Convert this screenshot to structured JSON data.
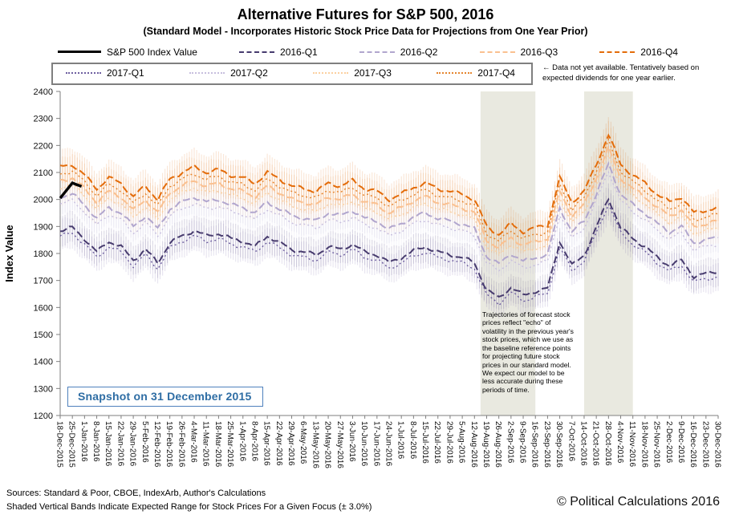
{
  "header": {
    "title": "Alternative Futures for S&P 500, 2016",
    "subtitle": "(Standard Model - Incorporates Historic Stock Price Data for Projections from One Year Prior)"
  },
  "annotations": {
    "snapshot": "Snapshot on 31 December 2015",
    "legend_note_line1": "← Data not yet available.  Tentatively based on",
    "legend_note_line2": "expected dividends for one year earlier.",
    "forecast_note": "Trajectories of forecast stock prices reflect \"echo\" of volatility in the previous year's stock prices, which we use as the baseline reference points for projecting future stock prices in our standard model.  We expect our model to be less accurate during these periods of time."
  },
  "footer": {
    "sources": "Sources: Standard & Poor, CBOE, IndexArb, Author's Calculations",
    "bands_note": "Shaded Vertical Bands Indicate Expected Range for Stock Prices For a Given Focus (± 3.0%)",
    "copyright": "© Political Calculations 2016"
  },
  "chart_data": {
    "type": "line",
    "title": "Alternative Futures for S&P 500, 2016",
    "subtitle": "(Standard Model - Incorporates Historic Stock Price Data for Projections from One Year Prior)",
    "xlabel": "",
    "ylabel": "Index Value",
    "ylim": [
      1200,
      2400
    ],
    "y_tick_step": 100,
    "band_pct": 3.0,
    "grid": false,
    "shaded_band_color": "#e9e9e0",
    "shaded_bands": [
      {
        "from": "19-Aug-2016",
        "to": "16-Sep-2016",
        "from_i": 34.5,
        "to_i": 39
      },
      {
        "from": "14-Oct-2016",
        "to": "11-Nov-2016",
        "from_i": 43,
        "to_i": 47
      }
    ],
    "categories": [
      "18-Dec-2015",
      "25-Dec-2015",
      "1-Jan-2016",
      "8-Jan-2016",
      "15-Jan-2016",
      "22-Jan-2016",
      "29-Jan-2016",
      "5-Feb-2016",
      "12-Feb-2016",
      "19-Feb-2016",
      "26-Feb-2016",
      "4-Mar-2016",
      "11-Mar-2016",
      "18-Mar-2016",
      "25-Mar-2016",
      "1-Apr-2016",
      "8-Apr-2016",
      "15-Apr-2016",
      "22-Apr-2016",
      "29-Apr-2016",
      "6-May-2016",
      "13-May-2016",
      "20-May-2016",
      "27-May-2016",
      "3-Jun-2016",
      "10-Jun-2016",
      "17-Jun-2016",
      "24-Jun-2016",
      "1-Jul-2016",
      "8-Jul-2016",
      "15-Jul-2016",
      "22-Jul-2016",
      "29-Jul-2016",
      "5-Aug-2016",
      "12-Aug-2016",
      "19-Aug-2016",
      "26-Aug-2016",
      "2-Sep-2016",
      "9-Sep-2016",
      "16-Sep-2016",
      "23-Sep-2016",
      "30-Sep-2016",
      "7-Oct-2016",
      "14-Oct-2016",
      "21-Oct-2016",
      "28-Oct-2016",
      "4-Nov-2016",
      "11-Nov-2016",
      "18-Nov-2016",
      "25-Nov-2016",
      "2-Dec-2016",
      "9-Dec-2016",
      "16-Dec-2016",
      "23-Dec-2016",
      "30-Dec-2016"
    ],
    "series": [
      {
        "name": "S&P 500 Index Value",
        "color": "#000000",
        "style": "solid",
        "width": 3.4,
        "band": false,
        "legend_row": 1,
        "values": [
          2005,
          2061,
          2044
        ]
      },
      {
        "name": "2016-Q1",
        "color": "#473b6e",
        "style": "dashed",
        "width": 2,
        "band": true,
        "legend_row": 1,
        "values": [
          1885,
          1895,
          1855,
          1805,
          1845,
          1825,
          1775,
          1815,
          1765,
          1840,
          1865,
          1885,
          1865,
          1875,
          1855,
          1845,
          1825,
          1865,
          1840,
          1815,
          1805,
          1795,
          1825,
          1815,
          1835,
          1805,
          1795,
          1765,
          1785,
          1810,
          1825,
          1805,
          1795,
          1785,
          1765,
          1665,
          1635,
          1675,
          1645,
          1660,
          1670,
          1845,
          1755,
          1795,
          1895,
          2005,
          1895,
          1855,
          1825,
          1785,
          1755,
          1775,
          1715,
          1725,
          1735
        ]
      },
      {
        "name": "2016-Q2",
        "color": "#b1a6ce",
        "style": "dashed",
        "width": 2,
        "band": true,
        "legend_row": 1,
        "values": [
          2010,
          2020,
          1980,
          1930,
          1970,
          1950,
          1900,
          1940,
          1890,
          1965,
          1990,
          2010,
          1990,
          2000,
          1980,
          1970,
          1950,
          1990,
          1965,
          1940,
          1930,
          1920,
          1950,
          1940,
          1960,
          1930,
          1920,
          1890,
          1910,
          1935,
          1950,
          1930,
          1920,
          1910,
          1890,
          1790,
          1760,
          1800,
          1770,
          1785,
          1795,
          1970,
          1880,
          1920,
          2020,
          2130,
          2020,
          1980,
          1950,
          1910,
          1880,
          1900,
          1840,
          1850,
          1860
        ]
      },
      {
        "name": "2016-Q3",
        "color": "#fac090",
        "style": "dashed",
        "width": 2,
        "band": true,
        "legend_row": 1,
        "values": [
          2070,
          2080,
          2040,
          1990,
          2030,
          2010,
          1960,
          2000,
          1950,
          2025,
          2050,
          2070,
          2050,
          2060,
          2040,
          2030,
          2010,
          2050,
          2025,
          2000,
          1990,
          1980,
          2010,
          2000,
          2020,
          1990,
          1980,
          1950,
          1970,
          1995,
          2010,
          1990,
          1980,
          1970,
          1950,
          1850,
          1820,
          1860,
          1830,
          1845,
          1855,
          2030,
          1940,
          1980,
          2080,
          2190,
          2080,
          2040,
          2010,
          1970,
          1940,
          1960,
          1900,
          1910,
          1920
        ]
      },
      {
        "name": "2016-Q4",
        "color": "#e36c0a",
        "style": "dashed",
        "width": 2,
        "band": true,
        "legend_row": 1,
        "values": [
          2120,
          2130,
          2090,
          2040,
          2080,
          2060,
          2010,
          2050,
          2000,
          2075,
          2100,
          2120,
          2100,
          2110,
          2090,
          2080,
          2060,
          2100,
          2075,
          2050,
          2040,
          2030,
          2060,
          2050,
          2070,
          2040,
          2030,
          2000,
          2020,
          2045,
          2060,
          2040,
          2030,
          2020,
          2000,
          1900,
          1870,
          1910,
          1880,
          1895,
          1905,
          2080,
          1990,
          2030,
          2130,
          2240,
          2130,
          2090,
          2060,
          2020,
          1990,
          2010,
          1950,
          1960,
          1970
        ]
      },
      {
        "name": "2017-Q1",
        "color": "#6e5fa0",
        "style": "dotted",
        "width": 1.4,
        "band": true,
        "legend_row": 2,
        "values": [
          1865,
          1875,
          1835,
          1785,
          1825,
          1805,
          1755,
          1795,
          1745,
          1820,
          1845,
          1865,
          1845,
          1855,
          1835,
          1825,
          1805,
          1845,
          1820,
          1795,
          1785,
          1775,
          1805,
          1795,
          1815,
          1785,
          1775,
          1745,
          1765,
          1790,
          1805,
          1785,
          1775,
          1765,
          1745,
          1645,
          1615,
          1655,
          1625,
          1640,
          1650,
          1825,
          1735,
          1775,
          1875,
          1985,
          1875,
          1835,
          1805,
          1765,
          1735,
          1755,
          1695,
          1705,
          1715
        ]
      },
      {
        "name": "2017-Q2",
        "color": "#c7bede",
        "style": "dotted",
        "width": 1.4,
        "band": true,
        "legend_row": 2,
        "values": [
          1985,
          1995,
          1955,
          1905,
          1945,
          1925,
          1875,
          1915,
          1865,
          1940,
          1965,
          1985,
          1965,
          1975,
          1955,
          1945,
          1925,
          1965,
          1940,
          1915,
          1905,
          1895,
          1925,
          1915,
          1935,
          1905,
          1895,
          1865,
          1885,
          1910,
          1925,
          1905,
          1895,
          1885,
          1865,
          1765,
          1735,
          1775,
          1745,
          1760,
          1770,
          1945,
          1855,
          1895,
          1995,
          2105,
          1995,
          1955,
          1925,
          1885,
          1855,
          1875,
          1815,
          1825,
          1835
        ]
      },
      {
        "name": "2017-Q3",
        "color": "#fbd0a0",
        "style": "dotted",
        "width": 1.4,
        "band": true,
        "legend_row": 2,
        "values": [
          2045,
          2055,
          2015,
          1965,
          2005,
          1985,
          1935,
          1975,
          1925,
          2000,
          2025,
          2045,
          2025,
          2035,
          2015,
          2005,
          1985,
          2025,
          2000,
          1975,
          1965,
          1955,
          1985,
          1975,
          1995,
          1965,
          1955,
          1925,
          1945,
          1970,
          1985,
          1965,
          1955,
          1945,
          1925,
          1825,
          1795,
          1835,
          1805,
          1820,
          1830,
          2005,
          1915,
          1955,
          2055,
          2165,
          2055,
          2015,
          1985,
          1945,
          1915,
          1935,
          1875,
          1885,
          1895
        ]
      },
      {
        "name": "2017-Q4",
        "color": "#e5852e",
        "style": "dotted",
        "width": 1.4,
        "band": true,
        "legend_row": 2,
        "values": [
          2095,
          2105,
          2065,
          2015,
          2055,
          2035,
          1985,
          2025,
          1975,
          2050,
          2075,
          2095,
          2075,
          2085,
          2065,
          2055,
          2035,
          2075,
          2050,
          2025,
          2015,
          2005,
          2035,
          2025,
          2045,
          2015,
          2005,
          1975,
          1995,
          2020,
          2035,
          2015,
          2005,
          1995,
          1975,
          1875,
          1845,
          1885,
          1855,
          1870,
          1880,
          2055,
          1965,
          2005,
          2105,
          2215,
          2105,
          2065,
          2035,
          1995,
          1965,
          1985,
          1925,
          1935,
          1945
        ]
      }
    ]
  }
}
